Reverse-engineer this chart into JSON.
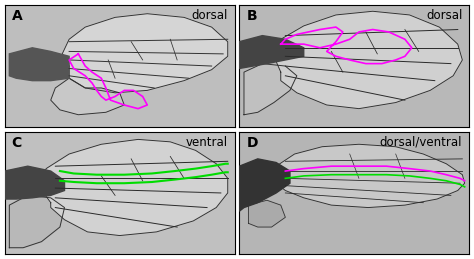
{
  "figure_width": 4.74,
  "figure_height": 2.59,
  "dpi": 100,
  "background_color": "#ffffff",
  "panel_labels": [
    "A",
    "B",
    "C",
    "D"
  ],
  "panel_label_fontsize": 10,
  "sublabels": [
    "dorsal",
    "dorsal",
    "ventral",
    "dorsal/ventral"
  ],
  "sublabel_fontsize": 8.5,
  "magenta": "#ff00ff",
  "green": "#00dd00",
  "line_width": 1.2,
  "border_color": "#000000",
  "wing_fill": "#d8d8d8",
  "wing_edge": "#333333",
  "vein_color": "#222222",
  "body_color": "#444444",
  "bg_light": "#e8e8e8"
}
